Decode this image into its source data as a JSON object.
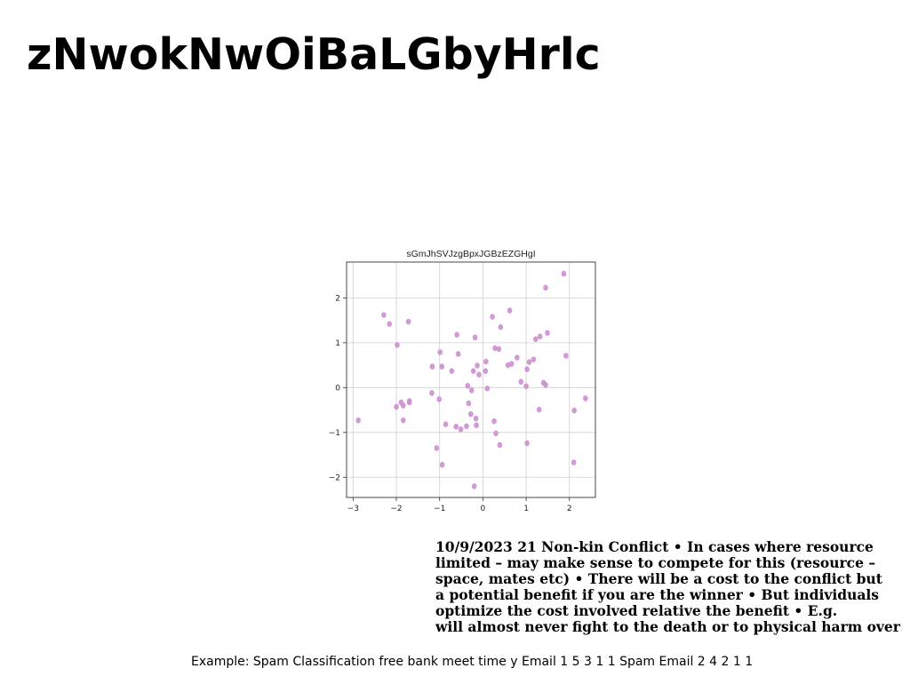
{
  "page": {
    "title": "zNwokNwOiBaLGbyHrlc",
    "notes_lines": [
      "10/9/2023 21 Non-kin Conflict • In cases where resource",
      "limited – may make sense to compete for this (resource –",
      "space, mates etc) • There will be a cost to the conflict but",
      "a potential benefit if you are the winner • But individuals",
      "optimize the cost involved relative the benefit • E.g.",
      "will almost never fight to the death or to physical harm over"
    ],
    "footer": "Example: Spam Classification free bank meet time y Email 1 5 3 1 1 Spam Email 2 4 2 1 1"
  },
  "chart_data": {
    "type": "scatter",
    "title": "sGmJhSVJzgBpxJGBzEZGHgI",
    "xlabel": "",
    "ylabel": "",
    "xlim": [
      -3.15,
      2.6
    ],
    "ylim": [
      -2.45,
      2.8
    ],
    "xticks": [
      -3,
      -2,
      -1,
      0,
      1,
      2
    ],
    "xtick_labels": [
      "−3",
      "−2",
      "−1",
      "0",
      "1",
      "2"
    ],
    "yticks": [
      -2,
      -1,
      0,
      1,
      2
    ],
    "ytick_labels": [
      "−2",
      "−1",
      "0",
      "1",
      "2"
    ],
    "grid": true,
    "legend": "none",
    "marker_color": "#cc8fd0",
    "points": [
      [
        -2.88,
        -0.73
      ],
      [
        -2.29,
        1.62
      ],
      [
        -2.16,
        1.42
      ],
      [
        -1.98,
        0.95
      ],
      [
        -2.0,
        -0.43
      ],
      [
        -1.89,
        -0.33
      ],
      [
        -1.84,
        -0.4
      ],
      [
        -1.84,
        -0.73
      ],
      [
        -1.72,
        1.47
      ],
      [
        -1.7,
        -0.33
      ],
      [
        -1.7,
        -0.3
      ],
      [
        -1.18,
        -0.12
      ],
      [
        -1.17,
        0.47
      ],
      [
        -1.07,
        -1.35
      ],
      [
        -1.01,
        -0.26
      ],
      [
        -0.99,
        0.79
      ],
      [
        -0.95,
        0.47
      ],
      [
        -0.94,
        -1.72
      ],
      [
        -0.86,
        -0.82
      ],
      [
        -0.72,
        0.37
      ],
      [
        -0.62,
        -0.87
      ],
      [
        -0.6,
        1.18
      ],
      [
        -0.57,
        0.75
      ],
      [
        -0.51,
        -0.93
      ],
      [
        -0.38,
        -0.86
      ],
      [
        -0.35,
        0.04
      ],
      [
        -0.33,
        -0.35
      ],
      [
        -0.28,
        -0.59
      ],
      [
        -0.26,
        -0.06
      ],
      [
        -0.22,
        0.37
      ],
      [
        -0.18,
        1.12
      ],
      [
        -0.16,
        -0.69
      ],
      [
        -0.15,
        -0.84
      ],
      [
        -0.13,
        0.49
      ],
      [
        -0.09,
        0.29
      ],
      [
        -0.2,
        -2.2
      ],
      [
        0.06,
        0.37
      ],
      [
        0.07,
        0.58
      ],
      [
        0.1,
        -0.02
      ],
      [
        0.22,
        1.58
      ],
      [
        0.26,
        -0.75
      ],
      [
        0.28,
        0.88
      ],
      [
        0.3,
        -1.02
      ],
      [
        0.37,
        0.86
      ],
      [
        0.41,
        1.35
      ],
      [
        0.39,
        -1.28
      ],
      [
        0.58,
        0.5
      ],
      [
        0.62,
        1.72
      ],
      [
        0.66,
        0.53
      ],
      [
        0.79,
        0.67
      ],
      [
        0.88,
        0.13
      ],
      [
        1.0,
        0.03
      ],
      [
        1.02,
        0.41
      ],
      [
        1.02,
        -1.24
      ],
      [
        1.07,
        0.57
      ],
      [
        1.17,
        0.63
      ],
      [
        1.22,
        1.08
      ],
      [
        1.3,
        -0.49
      ],
      [
        1.32,
        1.14
      ],
      [
        1.4,
        0.11
      ],
      [
        1.45,
        0.06
      ],
      [
        1.45,
        2.23
      ],
      [
        1.49,
        1.22
      ],
      [
        1.87,
        2.54
      ],
      [
        1.92,
        0.71
      ],
      [
        2.1,
        -1.67
      ],
      [
        2.11,
        -0.51
      ],
      [
        2.37,
        -0.24
      ]
    ]
  }
}
